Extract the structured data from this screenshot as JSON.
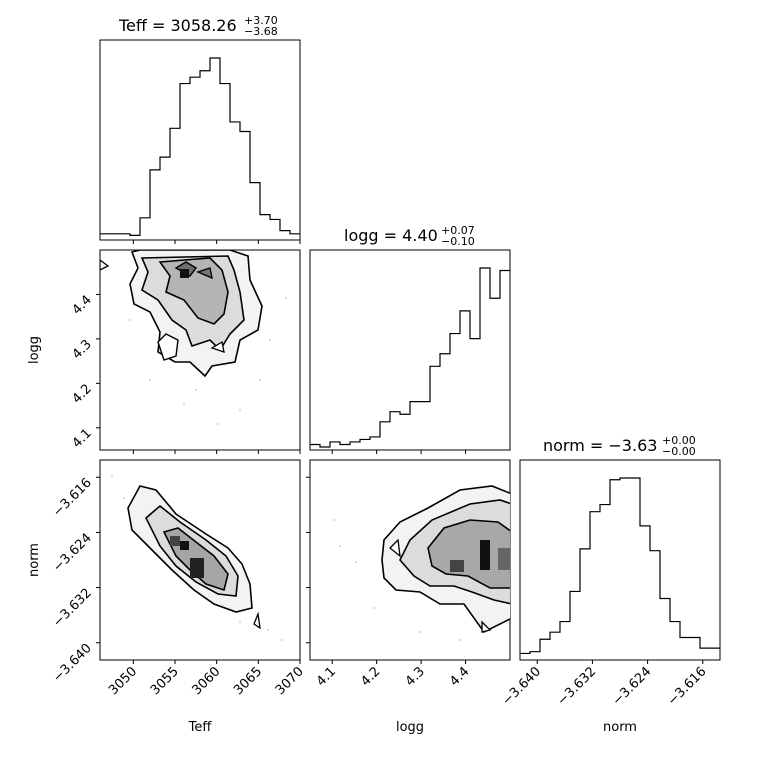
{
  "chart_data": {
    "type": "corner",
    "parameters": [
      {
        "name": "Teff",
        "title": {
          "main": "Teff = 3058.26",
          "sup": "+3.70",
          "sub": "−3.68"
        },
        "ticks": [
          "3050",
          "3055",
          "3060",
          "3065",
          "3070"
        ],
        "tick_values": [
          3050,
          3055,
          3060,
          3065,
          3070
        ],
        "range": [
          3046,
          3070
        ]
      },
      {
        "name": "logg",
        "title": {
          "main": "logg = 4.40",
          "sup": "+0.07",
          "sub": "−0.10"
        },
        "ticks": [
          "4.1",
          "4.2",
          "4.3",
          "4.4"
        ],
        "tick_values": [
          4.1,
          4.2,
          4.3,
          4.4
        ],
        "range": [
          4.05,
          4.5
        ]
      },
      {
        "name": "norm",
        "title": {
          "main": "norm = −3.63",
          "sup": "+0.00",
          "sub": "−0.00"
        },
        "ticks": [
          "−3.640",
          "−3.632",
          "−3.624",
          "−3.616"
        ],
        "tick_values": [
          -3.64,
          -3.632,
          -3.624,
          -3.616
        ],
        "range": [
          -3.6425,
          -3.6135
        ]
      }
    ],
    "histograms": [
      {
        "param": "Teff",
        "edges": [
          3046,
          3047.2,
          3048.4,
          3049.6,
          3050.8,
          3052,
          3053.2,
          3054.4,
          3055.6,
          3056.8,
          3058,
          3059.2,
          3060.4,
          3061.6,
          3062.8,
          3064,
          3065.2,
          3066.4,
          3067.6,
          3068.8,
          3070
        ],
        "counts": [
          2,
          2,
          2,
          1,
          12,
          42,
          50,
          68,
          96,
          100,
          104,
          112,
          96,
          72,
          66,
          34,
          14,
          11,
          4,
          2
        ]
      },
      {
        "param": "logg",
        "edges": [
          4.05,
          4.0725,
          4.095,
          4.1175,
          4.14,
          4.1625,
          4.185,
          4.2075,
          4.23,
          4.2525,
          4.275,
          4.2975,
          4.32,
          4.3425,
          4.365,
          4.3875,
          4.41,
          4.4325,
          4.455,
          4.4775,
          4.5
        ],
        "counts": [
          1,
          0,
          2,
          1,
          2,
          3,
          4,
          10,
          14,
          13,
          18,
          18,
          32,
          37,
          45,
          54,
          43,
          71,
          59,
          70
        ]
      },
      {
        "param": "norm",
        "edges": [
          -3.6425,
          -3.641,
          -3.6395,
          -3.638,
          -3.6365,
          -3.635,
          -3.6335,
          -3.632,
          -3.6305,
          -3.629,
          -3.6275,
          -3.626,
          -3.6245,
          -3.623,
          -3.6215,
          -3.62,
          -3.6185,
          -3.617,
          -3.6155,
          -3.614,
          -3.6125
        ],
        "counts": [
          2,
          3,
          10,
          14,
          20,
          37,
          61,
          82,
          86,
          100,
          101,
          101,
          74,
          60,
          33,
          20,
          11,
          11,
          5,
          5
        ]
      }
    ],
    "joint": [
      {
        "x": "Teff",
        "y": "logg",
        "note": "2D density with contours"
      },
      {
        "x": "Teff",
        "y": "norm",
        "note": "2D density with contours"
      },
      {
        "x": "logg",
        "y": "norm",
        "note": "2D density with contours"
      }
    ]
  }
}
